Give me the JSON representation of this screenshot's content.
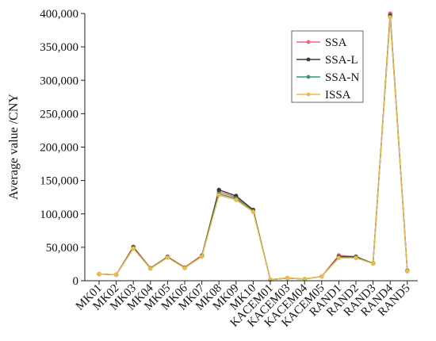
{
  "chart_data": {
    "type": "line",
    "ylabel": "Average value /CNY",
    "xlabel": "",
    "ylim": [
      0,
      400000
    ],
    "y_ticks": [
      0,
      50000,
      100000,
      150000,
      200000,
      250000,
      300000,
      350000,
      400000
    ],
    "y_tick_labels": [
      "0",
      "50,000",
      "100,000",
      "150,000",
      "200,000",
      "250,000",
      "300,000",
      "350,000",
      "400,000"
    ],
    "grid": false,
    "legend_position": "top-right",
    "categories": [
      "MK01",
      "MK02",
      "MK03",
      "MK04",
      "MK05",
      "MK06",
      "MK07",
      "MK08",
      "MK09",
      "MK10",
      "KACEM01",
      "KACEM03",
      "KACEM04",
      "KACEM05",
      "RAND1",
      "RAND2",
      "RAND3",
      "RAND4",
      "RAND5"
    ],
    "series": [
      {
        "name": "SSA",
        "color": "#f0637c",
        "values": [
          10000,
          9000,
          51000,
          19000,
          36000,
          20000,
          38000,
          133000,
          125000,
          106000,
          1500,
          4000,
          2500,
          6500,
          38000,
          36000,
          26000,
          400000,
          15000
        ]
      },
      {
        "name": "SSA-L",
        "color": "#3a3a3a",
        "values": [
          10000,
          9000,
          50000,
          18500,
          35500,
          19500,
          37000,
          136000,
          127000,
          106000,
          1500,
          4000,
          2500,
          6500,
          36000,
          36000,
          26000,
          397000,
          15000
        ]
      },
      {
        "name": "SSA-N",
        "color": "#2e9a6e",
        "values": [
          10000,
          9000,
          49000,
          18500,
          35000,
          19000,
          37000,
          130000,
          123000,
          104000,
          1500,
          4000,
          2500,
          6500,
          35000,
          35000,
          26000,
          395000,
          14500
        ]
      },
      {
        "name": "ISSA",
        "color": "#f2b84b",
        "values": [
          10000,
          9000,
          48000,
          18000,
          34500,
          19000,
          36000,
          128000,
          121000,
          103000,
          1500,
          4000,
          2500,
          6500,
          34000,
          34000,
          25500,
          394000,
          14000
        ]
      }
    ]
  }
}
